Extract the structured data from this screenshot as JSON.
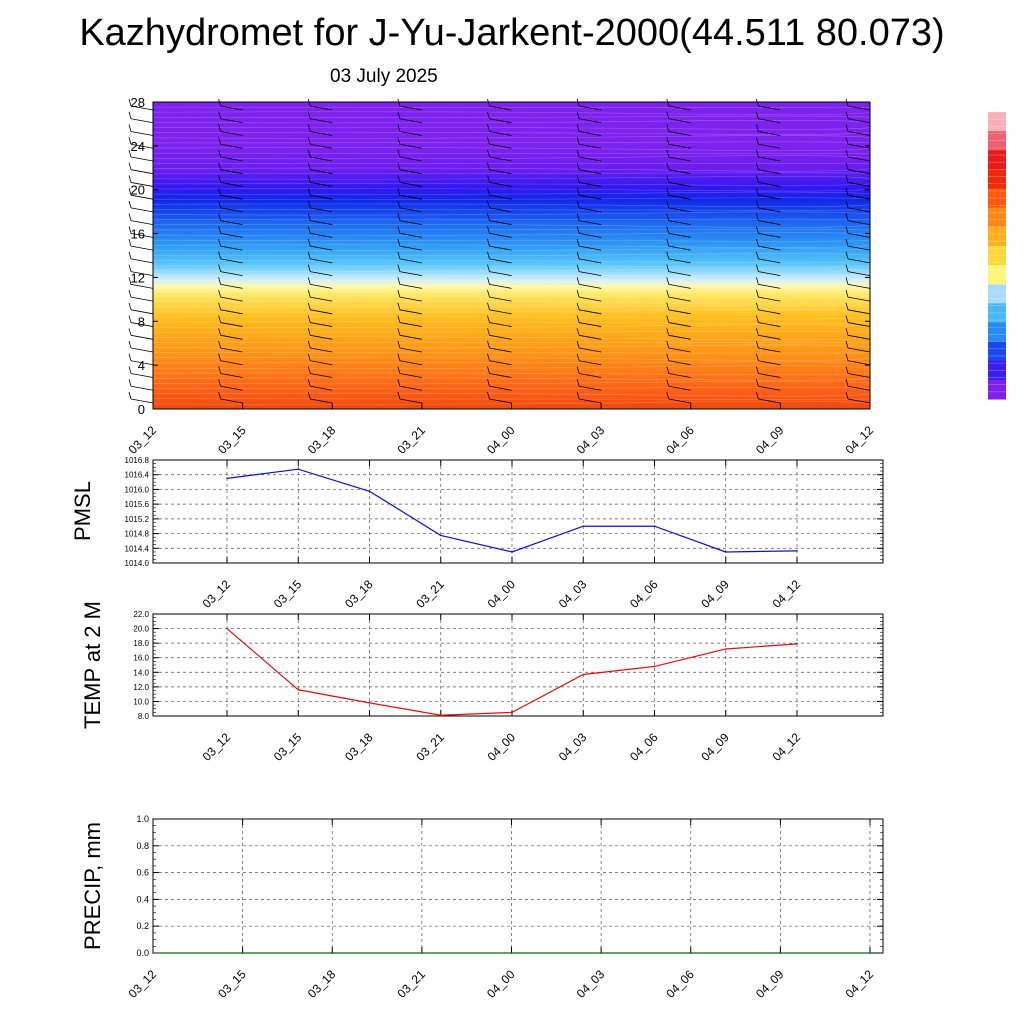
{
  "title": "Kazhydromet for J-Yu-Jarkent-2000(44.511 80.073)",
  "subtitle": "03 July 2025",
  "chart_data": [
    {
      "type": "heatmap",
      "title": "",
      "xlabel": "",
      "ylabel": "",
      "x_ticks": [
        "03_12",
        "03_15",
        "03_18",
        "03_21",
        "04_00",
        "04_03",
        "04_06",
        "04_09",
        "04_12"
      ],
      "y_ticks": [
        0,
        4,
        8,
        12,
        16,
        20,
        24,
        28
      ],
      "ylim": [
        0,
        28
      ],
      "wind_barbs": true,
      "colorbar": {
        "colors": [
          "#7e1fee",
          "#3a1ff0",
          "#1a48f0",
          "#2a8af4",
          "#4ab8f8",
          "#a8dcf8",
          "#fff47a",
          "#ffd83a",
          "#ffb01e",
          "#ff8a18",
          "#ff5a10",
          "#ee2a0a",
          "#e81a1a",
          "#f06070",
          "#f8b0b8"
        ]
      }
    },
    {
      "type": "line",
      "ylabel": "PMSL",
      "x": [
        "03_12",
        "03_15",
        "03_18",
        "03_21",
        "04_00",
        "04_03",
        "04_06",
        "04_09",
        "04_12"
      ],
      "ylim": [
        1014.0,
        1016.8
      ],
      "y_ticks": [
        "1014.0",
        "1014.4",
        "1014.8",
        "1015.2",
        "1015.6",
        "1016.0",
        "1016.4",
        "1016.8"
      ],
      "series": [
        {
          "values": [
            1016.3,
            1016.55,
            1015.95,
            1014.75,
            1014.3,
            1015.0,
            1015.0,
            1014.3,
            1014.33
          ]
        }
      ],
      "color": "#1010d0",
      "grid": true
    },
    {
      "type": "line",
      "ylabel": "TEMP at 2 M",
      "x": [
        "03_12",
        "03_15",
        "03_18",
        "03_21",
        "04_00",
        "04_03",
        "04_06",
        "04_09",
        "04_12"
      ],
      "ylim": [
        8.0,
        22.0
      ],
      "y_ticks": [
        "8.0",
        "10.0",
        "12.0",
        "14.0",
        "16.0",
        "18.0",
        "20.0",
        "22.0"
      ],
      "series": [
        {
          "values": [
            20.0,
            11.6,
            9.8,
            8.1,
            8.5,
            13.7,
            14.8,
            17.2,
            17.9
          ]
        }
      ],
      "color": "#e01010",
      "grid": true
    },
    {
      "type": "line",
      "ylabel": "PRECIP, mm",
      "x": [
        "03_12",
        "03_15",
        "03_18",
        "03_21",
        "04_00",
        "04_03",
        "04_06",
        "04_09",
        "04_12"
      ],
      "ylim": [
        0.0,
        1.0
      ],
      "y_ticks": [
        "0.0",
        "0.2",
        "0.4",
        "0.6",
        "0.8",
        "1.0"
      ],
      "series": [
        {
          "values": [
            0,
            0,
            0,
            0,
            0,
            0,
            0,
            0,
            0
          ]
        }
      ],
      "color": "#106010",
      "grid": true
    }
  ]
}
